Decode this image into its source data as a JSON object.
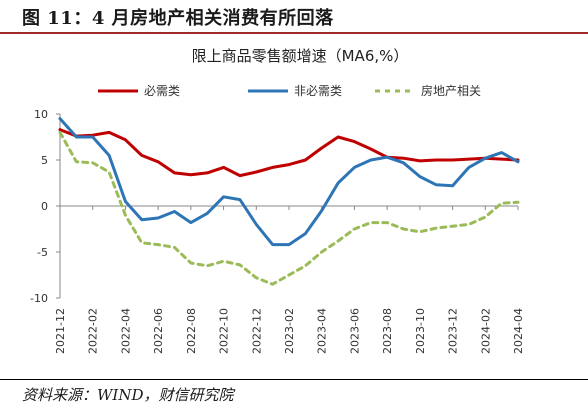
{
  "figure_title": "图 11：4 月房地产相关消费有所回落",
  "source": "资料来源：WIND，财信研究院",
  "chart_data": {
    "type": "line",
    "title": "限上商品零售额增速（MA6,%）",
    "xlabel": "",
    "ylabel": "",
    "ylim": [
      -10,
      10
    ],
    "yticks": [
      10,
      5,
      0,
      -5,
      -10
    ],
    "x_tick_labels": [
      "2021-12",
      "2022-02",
      "2022-04",
      "2022-06",
      "2022-08",
      "2022-10",
      "2022-12",
      "2023-02",
      "2023-04",
      "2023-06",
      "2023-08",
      "2023-10",
      "2023-12",
      "2024-02",
      "2024-04"
    ],
    "x": [
      "2021-12",
      "2022-01",
      "2022-02",
      "2022-03",
      "2022-04",
      "2022-05",
      "2022-06",
      "2022-07",
      "2022-08",
      "2022-09",
      "2022-10",
      "2022-11",
      "2022-12",
      "2023-01",
      "2023-02",
      "2023-03",
      "2023-04",
      "2023-05",
      "2023-06",
      "2023-07",
      "2023-08",
      "2023-09",
      "2023-10",
      "2023-11",
      "2023-12",
      "2024-01",
      "2024-02",
      "2024-03",
      "2024-04"
    ],
    "legend_position": "top",
    "grid": false,
    "series": [
      {
        "name": "必需类",
        "color": "#c00000",
        "style": "solid",
        "values": [
          8.3,
          7.6,
          7.7,
          8.0,
          7.2,
          5.5,
          4.8,
          3.6,
          3.4,
          3.6,
          4.2,
          3.3,
          3.7,
          4.2,
          4.5,
          5.0,
          6.3,
          7.5,
          7.0,
          6.2,
          5.3,
          5.2,
          4.9,
          5.0,
          5.0,
          5.1,
          5.2,
          5.1,
          5.0
        ]
      },
      {
        "name": "非必需类",
        "color": "#2e75b6",
        "style": "solid",
        "values": [
          9.5,
          7.5,
          7.5,
          5.5,
          0.5,
          -1.5,
          -1.3,
          -0.6,
          -1.8,
          -0.8,
          1.0,
          0.7,
          -2.0,
          -4.2,
          -4.2,
          -3.0,
          -0.5,
          2.5,
          4.2,
          5.0,
          5.3,
          4.7,
          3.2,
          2.3,
          2.2,
          4.2,
          5.2,
          5.8,
          4.8
        ]
      },
      {
        "name": "房地产相关",
        "color": "#9bbb59",
        "style": "dashed",
        "values": [
          8.0,
          4.8,
          4.7,
          3.7,
          -1.0,
          -4.0,
          -4.2,
          -4.5,
          -6.2,
          -6.5,
          -6.0,
          -6.4,
          -7.8,
          -8.5,
          -7.5,
          -6.5,
          -5.0,
          -3.8,
          -2.5,
          -1.8,
          -1.8,
          -2.5,
          -2.8,
          -2.4,
          -2.2,
          -2.0,
          -1.2,
          0.3,
          0.4
        ]
      }
    ]
  }
}
